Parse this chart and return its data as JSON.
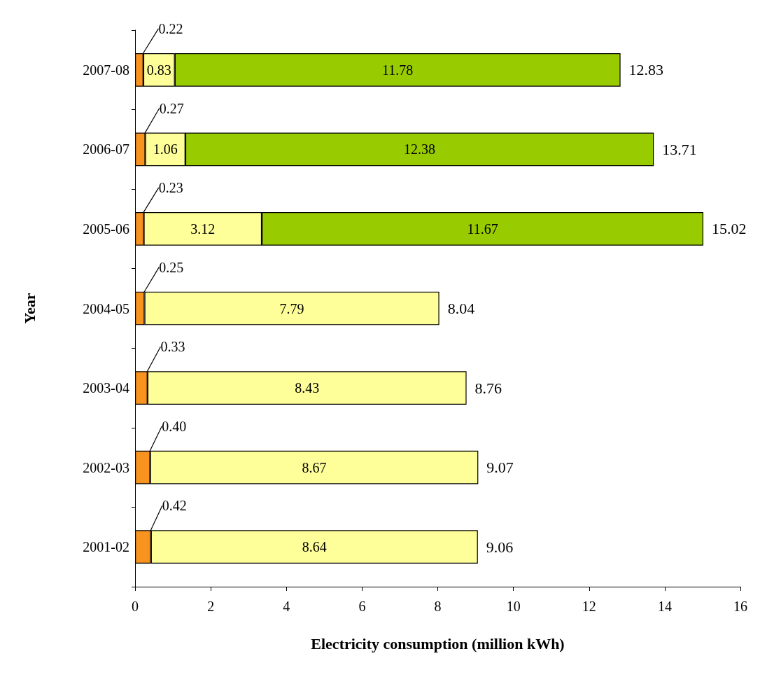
{
  "chart_data": {
    "type": "bar",
    "orientation": "horizontal",
    "stacked": true,
    "xlabel": "Electricity consumption (million kWh)",
    "ylabel": "Year",
    "categories": [
      "2007-08",
      "2006-07",
      "2005-06",
      "2004-05",
      "2003-04",
      "2002-03",
      "2001-02"
    ],
    "series": [
      {
        "color": "#f7931e",
        "values": [
          0.22,
          0.27,
          0.23,
          0.25,
          0.33,
          0.4,
          0.42
        ],
        "value_labels": [
          "0.22",
          "0.27",
          "0.23",
          "0.25",
          "0.33",
          "0.40",
          "0.42"
        ]
      },
      {
        "color": "#ffff99",
        "values": [
          0.83,
          1.06,
          3.12,
          7.79,
          8.43,
          8.67,
          8.64
        ],
        "value_labels": [
          "0.83",
          "1.06",
          "3.12",
          "7.79",
          "8.43",
          "8.67",
          "8.64"
        ]
      },
      {
        "color": "#99cc00",
        "values": [
          11.78,
          12.38,
          11.67,
          null,
          null,
          null,
          null
        ],
        "value_labels": [
          "11.78",
          "12.38",
          "11.67",
          null,
          null,
          null,
          null
        ]
      }
    ],
    "totals": [
      "12.83",
      "13.71",
      "15.02",
      "8.04",
      "8.76",
      "9.07",
      "9.06"
    ],
    "xlim": [
      0,
      16
    ],
    "xticks": [
      0,
      2,
      4,
      6,
      8,
      10,
      12,
      14,
      16
    ],
    "grid": false
  }
}
